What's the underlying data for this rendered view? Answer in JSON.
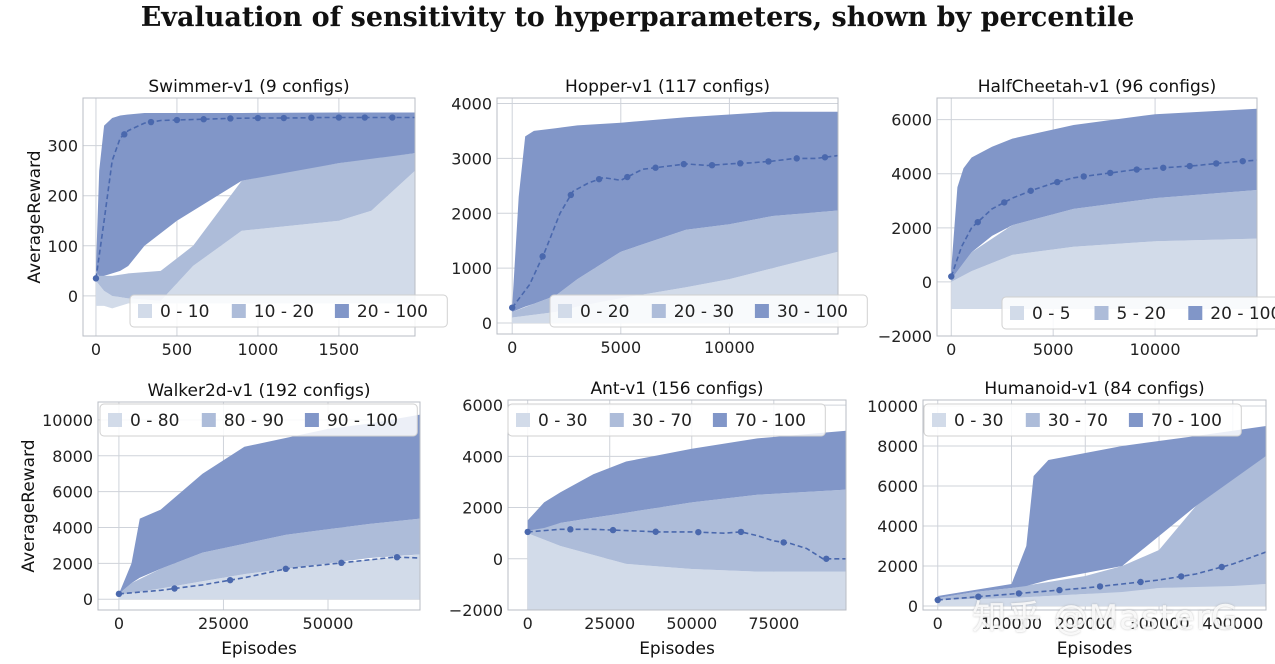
{
  "title": "Evaluation of sensitivity to hyperparameters, shown by percentile",
  "watermark": "知乎 @MasterG",
  "colors": {
    "band_low": "#d2dbe9",
    "band_mid": "#adbcd9",
    "band_high": "#8196c8",
    "median": "#4a68ad",
    "grid": "#cfd3da",
    "axes_edge": "#b9bdc4"
  },
  "chart_data": [
    {
      "type": "area",
      "title": "Swimmer-v1 (9 configs)",
      "xlabel": "",
      "ylabel": "AverageReward",
      "xlim": [
        -80,
        1970
      ],
      "ylim": [
        -80,
        395
      ],
      "xticks": [
        0,
        500,
        1000,
        1500
      ],
      "yticks": [
        0,
        100,
        200,
        300
      ],
      "legend": "bottom-right",
      "bands": [
        {
          "name": "0 - 10",
          "x": [
            0,
            50,
            100,
            200,
            400,
            600,
            900,
            1200,
            1500,
            1700,
            1970
          ],
          "lower": [
            -20,
            -20,
            -25,
            -15,
            -15,
            -15,
            -15,
            -15,
            -15,
            -15,
            -15
          ],
          "upper": [
            30,
            10,
            0,
            -5,
            -10,
            60,
            130,
            140,
            150,
            170,
            250
          ]
        },
        {
          "name": "10 - 20",
          "x": [
            0,
            50,
            100,
            200,
            400,
            600,
            900,
            1200,
            1500,
            1700,
            1970
          ],
          "lower": [
            30,
            10,
            0,
            -5,
            -10,
            60,
            130,
            140,
            150,
            170,
            250
          ],
          "upper": [
            50,
            40,
            40,
            45,
            50,
            100,
            230,
            250,
            265,
            275,
            285
          ]
        },
        {
          "name": "20 - 100",
          "x": [
            0,
            20,
            50,
            100,
            150,
            200,
            300,
            500,
            900,
            1500,
            1970
          ],
          "lower": [
            50,
            40,
            40,
            45,
            50,
            60,
            100,
            150,
            230,
            265,
            285
          ],
          "upper": [
            60,
            250,
            340,
            355,
            360,
            362,
            365,
            365,
            365,
            366,
            366
          ]
        }
      ],
      "median": {
        "x": [
          0,
          50,
          100,
          150,
          200,
          300,
          400,
          600,
          800,
          1000,
          1200,
          1400,
          1600,
          1800,
          1970
        ],
        "y": [
          35,
          150,
          270,
          315,
          330,
          345,
          350,
          352,
          354,
          355,
          355,
          356,
          356,
          356,
          356
        ]
      },
      "markers_x": [
        0,
        175,
        340,
        500,
        665,
        830,
        1000,
        1160,
        1330,
        1500,
        1660,
        1830
      ]
    },
    {
      "type": "area",
      "title": "Hopper-v1 (117 configs)",
      "xlabel": "",
      "ylabel": "",
      "xlim": [
        -700,
        15000
      ],
      "ylim": [
        -200,
        4100
      ],
      "xticks": [
        0,
        5000,
        10000
      ],
      "yticks": [
        0,
        1000,
        2000,
        3000,
        4000
      ],
      "legend": "bottom-right",
      "bands": [
        {
          "name": "0 - 20",
          "x": [
            0,
            1000,
            2000,
            3000,
            5000,
            8000,
            10000,
            12000,
            15000
          ],
          "lower": [
            0,
            0,
            0,
            0,
            0,
            0,
            0,
            0,
            0
          ],
          "upper": [
            100,
            150,
            200,
            300,
            450,
            650,
            800,
            1000,
            1300
          ]
        },
        {
          "name": "20 - 30",
          "x": [
            0,
            1000,
            2000,
            3000,
            5000,
            8000,
            10000,
            12000,
            15000
          ],
          "lower": [
            100,
            150,
            200,
            300,
            450,
            650,
            800,
            1000,
            1300
          ],
          "upper": [
            200,
            350,
            500,
            800,
            1300,
            1700,
            1800,
            1950,
            2050
          ]
        },
        {
          "name": "30 - 100",
          "x": [
            0,
            300,
            600,
            1000,
            2000,
            3000,
            5000,
            8000,
            10000,
            12000,
            15000
          ],
          "lower": [
            200,
            250,
            300,
            350,
            500,
            800,
            1300,
            1700,
            1800,
            1950,
            2050
          ],
          "upper": [
            300,
            2300,
            3400,
            3500,
            3550,
            3600,
            3650,
            3750,
            3800,
            3850,
            3850
          ]
        }
      ],
      "median": {
        "x": [
          0,
          800,
          1500,
          2200,
          2800,
          3500,
          4200,
          5000,
          6000,
          7000,
          8000,
          9000,
          10000,
          11000,
          12000,
          13000,
          14000,
          15000
        ],
        "y": [
          280,
          700,
          1300,
          2000,
          2400,
          2550,
          2650,
          2600,
          2800,
          2850,
          2900,
          2870,
          2900,
          2920,
          2950,
          3000,
          3000,
          3050
        ]
      },
      "markers_x": [
        0,
        1400,
        2700,
        4000,
        5300,
        6600,
        7900,
        9200,
        10500,
        11800,
        13100,
        14400
      ]
    },
    {
      "type": "area",
      "title": "HalfCheetah-v1 (96 configs)",
      "xlabel": "",
      "ylabel": "",
      "xlim": [
        -700,
        15000
      ],
      "ylim": [
        -2000,
        6800
      ],
      "xticks": [
        0,
        5000,
        10000
      ],
      "yticks": [
        -2000,
        0,
        2000,
        4000,
        6000
      ],
      "legend": "bottom-right",
      "bands": [
        {
          "name": "0 - 5",
          "x": [
            0,
            1000,
            3000,
            6000,
            10000,
            15000
          ],
          "lower": [
            -1000,
            -1000,
            -1000,
            -1000,
            -1000,
            -1000
          ],
          "upper": [
            0,
            400,
            1000,
            1300,
            1500,
            1600
          ]
        },
        {
          "name": "5 - 20",
          "x": [
            0,
            1000,
            3000,
            6000,
            10000,
            15000
          ],
          "lower": [
            0,
            400,
            1000,
            1300,
            1500,
            1600
          ],
          "upper": [
            100,
            1100,
            2100,
            2700,
            3100,
            3400
          ]
        },
        {
          "name": "20 - 100",
          "x": [
            0,
            300,
            600,
            1000,
            2000,
            3000,
            6000,
            10000,
            15000
          ],
          "lower": [
            100,
            400,
            700,
            1100,
            1700,
            2100,
            2700,
            3100,
            3400
          ],
          "upper": [
            500,
            3500,
            4200,
            4600,
            5000,
            5300,
            5800,
            6200,
            6400
          ]
        }
      ],
      "median": {
        "x": [
          0,
          500,
          1000,
          2000,
          3000,
          4000,
          5000,
          6000,
          7000,
          8000,
          9000,
          10000,
          11000,
          12000,
          13000,
          14000,
          15000
        ],
        "y": [
          200,
          1300,
          2000,
          2700,
          3100,
          3400,
          3650,
          3850,
          3950,
          4050,
          4150,
          4200,
          4250,
          4300,
          4380,
          4450,
          4500
        ]
      },
      "markers_x": [
        0,
        1300,
        2600,
        3900,
        5200,
        6500,
        7800,
        9100,
        10400,
        11700,
        13000,
        14300
      ]
    },
    {
      "type": "area",
      "title": "Walker2d-v1 (192 configs)",
      "xlabel": "Episodes",
      "ylabel": "AverageReward",
      "xlim": [
        -5000,
        72000
      ],
      "ylim": [
        -600,
        11000
      ],
      "xticks": [
        0,
        25000,
        50000
      ],
      "yticks": [
        0,
        2000,
        4000,
        6000,
        8000,
        10000
      ],
      "legend": "top-left",
      "bands": [
        {
          "name": "0 - 80",
          "x": [
            0,
            10000,
            30000,
            50000,
            72000
          ],
          "lower": [
            0,
            0,
            0,
            0,
            0
          ],
          "upper": [
            250,
            600,
            1400,
            2000,
            2500
          ]
        },
        {
          "name": "80 - 90",
          "x": [
            0,
            3000,
            10000,
            20000,
            30000,
            40000,
            50000,
            60000,
            72000
          ],
          "lower": [
            250,
            350,
            600,
            1000,
            1400,
            1700,
            2000,
            2300,
            2500
          ],
          "upper": [
            300,
            900,
            1700,
            2600,
            3100,
            3600,
            3900,
            4200,
            4500
          ]
        },
        {
          "name": "90 - 100",
          "x": [
            0,
            3000,
            5000,
            10000,
            20000,
            30000,
            40000,
            50000,
            60000,
            72000
          ],
          "lower": [
            300,
            900,
            1200,
            1700,
            2600,
            3100,
            3600,
            3900,
            4200,
            4500
          ],
          "upper": [
            300,
            2000,
            4500,
            5000,
            7000,
            8500,
            9000,
            9500,
            9800,
            10300
          ]
        }
      ],
      "median": {
        "x": [
          0,
          10000,
          20000,
          30000,
          40000,
          50000,
          60000,
          66000,
          72000
        ],
        "y": [
          300,
          500,
          800,
          1200,
          1700,
          1950,
          2200,
          2350,
          2300
        ]
      },
      "markers_x": [
        0,
        13300,
        26600,
        39900,
        53200,
        66500
      ]
    },
    {
      "type": "area",
      "title": "Ant-v1 (156 configs)",
      "xlabel": "Episodes",
      "ylabel": "",
      "xlim": [
        -6000,
        97000
      ],
      "ylim": [
        -2000,
        6200
      ],
      "xticks": [
        0,
        25000,
        50000,
        75000
      ],
      "yticks": [
        -2000,
        0,
        2000,
        4000,
        6000
      ],
      "legend": "top-left",
      "bands": [
        {
          "name": "0 - 30",
          "x": [
            0,
            10000,
            30000,
            50000,
            70000,
            97000
          ],
          "lower": [
            -2000,
            -2000,
            -2000,
            -2000,
            -2000,
            -2000
          ],
          "upper": [
            1000,
            500,
            -200,
            -400,
            -500,
            -500
          ]
        },
        {
          "name": "30 - 70",
          "x": [
            0,
            10000,
            30000,
            50000,
            70000,
            97000
          ],
          "lower": [
            1000,
            500,
            -200,
            -400,
            -500,
            -500
          ],
          "upper": [
            1100,
            1400,
            1800,
            2200,
            2500,
            2700
          ]
        },
        {
          "name": "70 - 100",
          "x": [
            0,
            5000,
            10000,
            20000,
            30000,
            50000,
            70000,
            97000
          ],
          "lower": [
            1100,
            1200,
            1400,
            1600,
            1800,
            2200,
            2500,
            2700
          ],
          "upper": [
            1500,
            2200,
            2600,
            3300,
            3800,
            4300,
            4700,
            5000
          ]
        }
      ],
      "median": {
        "x": [
          0,
          10000,
          20000,
          30000,
          40000,
          50000,
          60000,
          65000,
          70000,
          75000,
          80000,
          85000,
          90000,
          97000
        ],
        "y": [
          1050,
          1150,
          1150,
          1100,
          1050,
          1050,
          1000,
          1050,
          900,
          700,
          600,
          400,
          0,
          0
        ]
      },
      "markers_x": [
        0,
        13000,
        26000,
        39000,
        52000,
        65000,
        78000,
        91000
      ]
    },
    {
      "type": "area",
      "title": "Humanoid-v1 (84 configs)",
      "xlabel": "Episodes",
      "ylabel": "",
      "xlim": [
        -20000,
        445000
      ],
      "ylim": [
        -200,
        10300
      ],
      "xticks": [
        0,
        100000,
        200000,
        300000,
        400000
      ],
      "yticks": [
        0,
        2000,
        4000,
        6000,
        8000,
        10000
      ],
      "legend": "top-left",
      "bands": [
        {
          "name": "0 - 30",
          "x": [
            0,
            100000,
            200000,
            300000,
            445000
          ],
          "lower": [
            0,
            0,
            0,
            0,
            0
          ],
          "upper": [
            300,
            400,
            600,
            900,
            1100
          ]
        },
        {
          "name": "30 - 70",
          "x": [
            0,
            50000,
            100000,
            200000,
            250000,
            300000,
            350000,
            400000,
            445000
          ],
          "lower": [
            300,
            350,
            400,
            600,
            700,
            900,
            950,
            1000,
            1100
          ],
          "upper": [
            400,
            700,
            900,
            1500,
            2000,
            2800,
            5000,
            6500,
            7500
          ]
        },
        {
          "name": "70 - 100",
          "x": [
            0,
            50000,
            100000,
            120000,
            130000,
            150000,
            250000,
            350000,
            445000
          ],
          "lower": [
            400,
            700,
            900,
            1000,
            1100,
            1300,
            2000,
            5000,
            7500
          ],
          "upper": [
            500,
            800,
            1100,
            3000,
            6500,
            7300,
            8000,
            8500,
            9000
          ]
        }
      ],
      "median": {
        "x": [
          0,
          100000,
          200000,
          300000,
          350000,
          400000,
          445000
        ],
        "y": [
          300,
          600,
          900,
          1300,
          1600,
          2100,
          2700
        ]
      },
      "markers_x": [
        0,
        55000,
        110000,
        165000,
        220000,
        275000,
        330000,
        385000
      ]
    }
  ]
}
